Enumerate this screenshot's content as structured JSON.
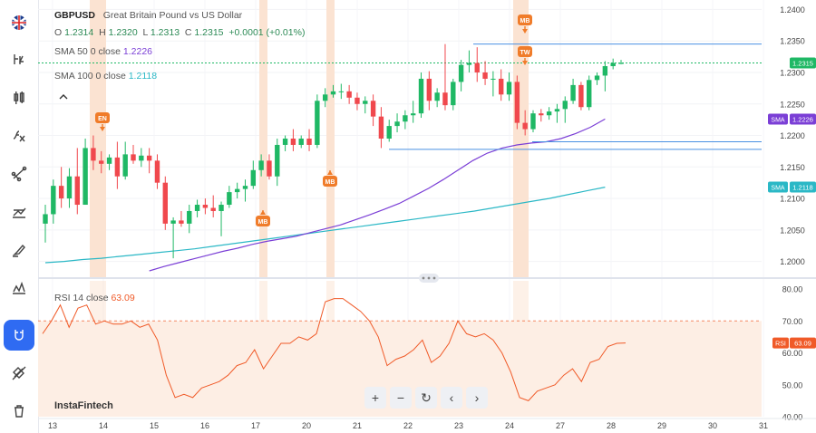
{
  "toolbar": {
    "items": [
      {
        "name": "symbol-flag-icon"
      },
      {
        "name": "timeframe-icon"
      },
      {
        "name": "chart-type-icon"
      },
      {
        "name": "indicators-icon"
      },
      {
        "name": "drawing-tools-icon"
      },
      {
        "name": "trend-lines-icon"
      },
      {
        "name": "brush-icon"
      },
      {
        "name": "patterns-icon"
      },
      {
        "name": "magnet-icon",
        "active": true
      },
      {
        "name": "hide-drawings-icon"
      },
      {
        "name": "delete-all-icon"
      }
    ],
    "active_color": "#2f6bf2"
  },
  "legend": {
    "symbol": "GBPUSD",
    "description": "Great Britain Pound vs US Dollar",
    "o_label": "O",
    "o_value": "1.2314",
    "h_label": "H",
    "h_value": "1.2320",
    "l_label": "L",
    "l_value": "1.2313",
    "c_label": "C",
    "c_value": "1.2315",
    "change": "+0.0001 (+0.01%)",
    "sma50_label": "SMA 50 0 close",
    "sma50_value": "1.2226",
    "sma100_label": "SMA 100 0 close",
    "sma100_value": "1.2118",
    "rsi_label": "RSI 14 close",
    "rsi_value": "63.09"
  },
  "brand": "InstaFintech",
  "zoom_buttons": [
    "+",
    "−",
    "↻",
    "‹",
    "›"
  ],
  "colors": {
    "up": "#26a69a",
    "up_bar": "#1fb865",
    "down": "#f0484d",
    "sma50": "#7b3fd6",
    "sma100": "#2bb8c6",
    "rsi": "#f05a28",
    "event": "#f07c2a",
    "highlight": "#fbe3d2",
    "level": "#4a90e2"
  },
  "chart_data": [
    {
      "type": "candlestick",
      "ylim": [
        1.1975,
        1.2415
      ],
      "y_ticks": [
        "1.2400",
        "1.2350",
        "1.2300",
        "1.2250",
        "1.2200",
        "1.2150",
        "1.2100",
        "1.2050",
        "1.2000"
      ],
      "x_ticks": [
        "13",
        "14",
        "15",
        "16",
        "17",
        "20",
        "21",
        "22",
        "23",
        "24",
        "27",
        "28",
        "29",
        "30",
        "31"
      ],
      "last_price": "1.2315",
      "sma50_tag": "1.2226",
      "sma100_tag": "1.2118",
      "sma_tag_label": "SMA",
      "candles": [
        [
          1.206,
          1.209,
          1.203,
          1.2075
        ],
        [
          1.2075,
          1.213,
          1.206,
          1.212
        ],
        [
          1.212,
          1.215,
          1.2085,
          1.21
        ],
        [
          1.21,
          1.2148,
          1.2085,
          1.2135
        ],
        [
          1.2135,
          1.218,
          1.2075,
          1.209
        ],
        [
          1.209,
          1.2195,
          1.209,
          1.218
        ],
        [
          1.218,
          1.22,
          1.2145,
          1.216
        ],
        [
          1.216,
          1.2175,
          1.214,
          1.2155
        ],
        [
          1.2155,
          1.217,
          1.2145,
          1.2165
        ],
        [
          1.2165,
          1.219,
          1.2115,
          1.2135
        ],
        [
          1.2135,
          1.219,
          1.213,
          1.217
        ],
        [
          1.217,
          1.2185,
          1.2155,
          1.216
        ],
        [
          1.216,
          1.218,
          1.215,
          1.2168
        ],
        [
          1.2168,
          1.218,
          1.214,
          1.216
        ],
        [
          1.216,
          1.217,
          1.2115,
          1.2125
        ],
        [
          1.2125,
          1.2135,
          1.205,
          1.206
        ],
        [
          1.206,
          1.207,
          1.2005,
          1.2065
        ],
        [
          1.2065,
          1.208,
          1.2055,
          1.206
        ],
        [
          1.206,
          1.209,
          1.2045,
          1.208
        ],
        [
          1.208,
          1.2098,
          1.207,
          1.209
        ],
        [
          1.209,
          1.21,
          1.2075,
          1.2085
        ],
        [
          1.2085,
          1.2105,
          1.207,
          1.208
        ],
        [
          1.208,
          1.2095,
          1.204,
          1.209
        ],
        [
          1.209,
          1.212,
          1.2085,
          1.211
        ],
        [
          1.211,
          1.2125,
          1.21,
          1.2115
        ],
        [
          1.2115,
          1.213,
          1.2095,
          1.212
        ],
        [
          1.212,
          1.216,
          1.2115,
          1.2145
        ],
        [
          1.2145,
          1.217,
          1.2135,
          1.216
        ],
        [
          1.216,
          1.217,
          1.213,
          1.2135
        ],
        [
          1.2135,
          1.2195,
          1.212,
          1.2185
        ],
        [
          1.2185,
          1.22,
          1.2175,
          1.2195
        ],
        [
          1.2195,
          1.221,
          1.2175,
          1.2185
        ],
        [
          1.2185,
          1.22,
          1.218,
          1.2195
        ],
        [
          1.2195,
          1.221,
          1.2175,
          1.2185
        ],
        [
          1.2185,
          1.2265,
          1.218,
          1.2255
        ],
        [
          1.2255,
          1.2275,
          1.2245,
          1.2265
        ],
        [
          1.2265,
          1.228,
          1.226,
          1.227
        ],
        [
          1.227,
          1.2282,
          1.2258,
          1.227
        ],
        [
          1.227,
          1.228,
          1.225,
          1.226
        ],
        [
          1.226,
          1.2268,
          1.224,
          1.225
        ],
        [
          1.225,
          1.2262,
          1.2235,
          1.2255
        ],
        [
          1.2255,
          1.2265,
          1.2215,
          1.223
        ],
        [
          1.223,
          1.2245,
          1.218,
          1.2195
        ],
        [
          1.2195,
          1.2225,
          1.219,
          1.2215
        ],
        [
          1.2215,
          1.2235,
          1.2205,
          1.2222
        ],
        [
          1.2222,
          1.224,
          1.221,
          1.2232
        ],
        [
          1.2232,
          1.2255,
          1.222,
          1.2235
        ],
        [
          1.2235,
          1.23,
          1.2228,
          1.229
        ],
        [
          1.229,
          1.2302,
          1.224,
          1.2255
        ],
        [
          1.2255,
          1.2275,
          1.2245,
          1.2268
        ],
        [
          1.2268,
          1.2345,
          1.224,
          1.2248
        ],
        [
          1.2248,
          1.229,
          1.224,
          1.2285
        ],
        [
          1.2285,
          1.232,
          1.227,
          1.2312
        ],
        [
          1.2312,
          1.2335,
          1.23,
          1.2315
        ],
        [
          1.2315,
          1.234,
          1.2285,
          1.23
        ],
        [
          1.23,
          1.2318,
          1.228,
          1.229
        ],
        [
          1.229,
          1.2302,
          1.2262,
          1.229
        ],
        [
          1.229,
          1.2305,
          1.2255,
          1.2265
        ],
        [
          1.2265,
          1.23,
          1.2255,
          1.2285
        ],
        [
          1.2285,
          1.2295,
          1.221,
          1.222
        ],
        [
          1.222,
          1.224,
          1.22,
          1.221
        ],
        [
          1.221,
          1.224,
          1.2205,
          1.2235
        ],
        [
          1.2235,
          1.2242,
          1.2222,
          1.2232
        ],
        [
          1.2232,
          1.2245,
          1.2225,
          1.2238
        ],
        [
          1.2238,
          1.225,
          1.222,
          1.2242
        ],
        [
          1.2242,
          1.2262,
          1.222,
          1.2255
        ],
        [
          1.2255,
          1.229,
          1.225,
          1.228
        ],
        [
          1.228,
          1.2285,
          1.224,
          1.2245
        ],
        [
          1.2245,
          1.2295,
          1.224,
          1.2288
        ],
        [
          1.2288,
          1.23,
          1.228,
          1.2295
        ],
        [
          1.2295,
          1.2318,
          1.227,
          1.231
        ],
        [
          1.231,
          1.2322,
          1.2305,
          1.2315
        ],
        [
          1.2315,
          1.232,
          1.2313,
          1.2315
        ]
      ],
      "sma50": [
        1.1985,
        1.1992,
        1.1998,
        1.2004,
        1.201,
        1.2016,
        1.2021,
        1.2027,
        1.2032,
        1.2036,
        1.204,
        1.2046,
        1.2052,
        1.2058,
        1.2066,
        1.2074,
        1.2083,
        1.2092,
        1.2104,
        1.2116,
        1.213,
        1.2145,
        1.216,
        1.2172,
        1.218,
        1.2185,
        1.2188,
        1.219,
        1.2195,
        1.2203,
        1.2213,
        1.2226
      ],
      "sma100": [
        1.1998,
        1.2,
        1.2003,
        1.2005,
        1.2008,
        1.2011,
        1.2014,
        1.2017,
        1.202,
        1.2024,
        1.2028,
        1.2032,
        1.2036,
        1.204,
        1.2044,
        1.2048,
        1.2052,
        1.2056,
        1.206,
        1.2064,
        1.2068,
        1.2072,
        1.2076,
        1.208,
        1.2085,
        1.209,
        1.2095,
        1.21,
        1.2106,
        1.2112,
        1.2118
      ],
      "levels": [
        1.2345,
        1.219,
        1.2178
      ],
      "events": [
        {
          "label": "EN",
          "index": 5,
          "position": "above"
        },
        {
          "label": "MB",
          "index": 22,
          "position": "below"
        },
        {
          "label": "MB",
          "index": 29,
          "position": "below"
        },
        {
          "label": "MB",
          "index": 49,
          "position": "above"
        },
        {
          "label": "TW",
          "index": 49,
          "position": "above"
        }
      ]
    },
    {
      "type": "line",
      "name": "RSI",
      "ylim": [
        40,
        82
      ],
      "y_ticks": [
        "80.00",
        "70.00",
        "60.00",
        "50.00",
        "40.00"
      ],
      "overbought": 70,
      "last_value": "63.09",
      "values": [
        66,
        70,
        75,
        68,
        74,
        75,
        69,
        70,
        69,
        69,
        70,
        68,
        69,
        64,
        53,
        46,
        47,
        46,
        49,
        50,
        51,
        53,
        56,
        57,
        61,
        55,
        59,
        63,
        63,
        65,
        64,
        66,
        76,
        77,
        77,
        75,
        73,
        70,
        65,
        56,
        58,
        59,
        61,
        64,
        57,
        59,
        63,
        70,
        66,
        65,
        66,
        64,
        60,
        54,
        46,
        45,
        48,
        49,
        50,
        53,
        55,
        51,
        57,
        58,
        62,
        63,
        63.1
      ]
    }
  ]
}
